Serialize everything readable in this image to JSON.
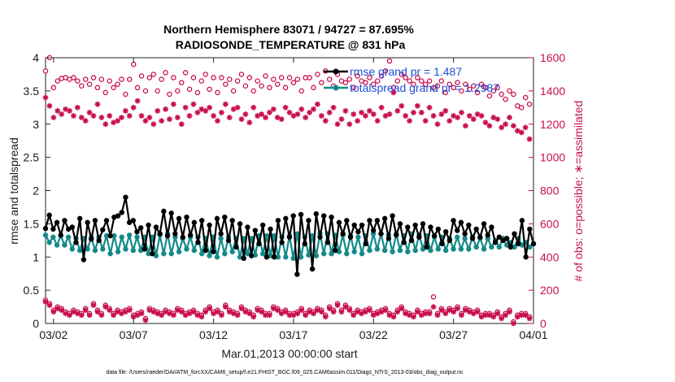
{
  "chart_data": {
    "type": "line",
    "title_line1": "Northern Hemisphere 83071 / 94727 = 87.695%",
    "title_line2": "RADIOSONDE_TEMPERATURE @ 831 hPa",
    "xlabel": "Mar.01,2013 00:00:00 start",
    "ylabel_left": "rmse and totalspread",
    "ylabel_right": "# of obs: o=possible; ∗=assimilated",
    "x_range_days": [
      0.5,
      31.0
    ],
    "y_left_range": [
      0,
      4
    ],
    "y_right_range": [
      0,
      1600
    ],
    "x_ticks": [
      {
        "day": 1,
        "label": "03/02"
      },
      {
        "day": 6,
        "label": "03/07"
      },
      {
        "day": 11,
        "label": "03/12"
      },
      {
        "day": 16,
        "label": "03/17"
      },
      {
        "day": 21,
        "label": "03/22"
      },
      {
        "day": 26,
        "label": "03/27"
      },
      {
        "day": 31,
        "label": "04/01"
      }
    ],
    "y_left_ticks": [
      "0",
      "0.5",
      "1",
      "1.5",
      "2",
      "2.5",
      "3",
      "3.5",
      "4"
    ],
    "y_right_ticks": [
      "0",
      "200",
      "400",
      "600",
      "800",
      "1000",
      "1200",
      "1400",
      "1600"
    ],
    "legend": [
      {
        "label": "rmse grand pr = 1.487",
        "color": "#000000"
      },
      {
        "label": "totalspread grand pr = 1.2987",
        "color": "#138a8a"
      }
    ],
    "colors": {
      "rmse": "#000000",
      "spread": "#138a8a",
      "obs": "#c8104f",
      "legend_text": "#1a4fd8"
    },
    "series": [
      {
        "name": "rmse",
        "values": [
          1.43,
          1.63,
          1.42,
          1.52,
          1.33,
          1.55,
          1.42,
          1.45,
          1.22,
          1.58,
          0.96,
          1.52,
          1.27,
          1.55,
          1.25,
          1.41,
          1.55,
          1.32,
          1.6,
          1.62,
          1.67,
          1.9,
          1.52,
          1.55,
          1.38,
          1.44,
          1.12,
          1.48,
          1.05,
          1.45,
          1.35,
          1.69,
          1.32,
          1.66,
          1.35,
          1.58,
          1.3,
          1.6,
          1.33,
          1.52,
          1.22,
          1.55,
          1.1,
          1.48,
          1.08,
          1.58,
          1.35,
          1.6,
          1.25,
          1.55,
          1.15,
          1.5,
          0.98,
          1.45,
          1.02,
          1.4,
          1.2,
          1.48,
          1.0,
          1.42,
          1.0,
          1.55,
          1.22,
          1.58,
          1.3,
          1.62,
          0.74,
          1.64,
          1.2,
          1.55,
          0.82,
          1.65,
          1.3,
          1.62,
          1.22,
          1.6,
          1.1,
          1.52,
          1.35,
          1.55,
          1.3,
          1.48,
          1.38,
          1.48,
          1.2,
          1.55,
          1.4,
          1.55,
          1.35,
          1.58,
          1.28,
          1.62,
          1.33,
          1.5,
          1.22,
          1.45,
          1.25,
          1.48,
          1.3,
          1.5,
          1.15,
          1.45,
          1.32,
          1.42,
          1.2,
          1.38,
          1.25,
          1.55,
          1.4,
          1.52,
          1.35,
          1.48,
          1.28,
          1.42,
          1.3,
          1.5,
          1.33,
          1.45,
          1.22,
          1.3,
          1.25,
          1.28,
          1.15,
          1.35,
          1.2,
          1.55,
          1.0,
          1.42,
          1.2
        ]
      },
      {
        "name": "totalspread",
        "values": [
          1.33,
          1.22,
          1.3,
          1.18,
          1.32,
          1.18,
          1.3,
          1.12,
          1.28,
          1.1,
          1.28,
          1.12,
          1.3,
          1.1,
          1.3,
          1.12,
          1.32,
          1.05,
          1.32,
          1.08,
          1.3,
          1.12,
          1.33,
          1.1,
          1.3,
          1.1,
          1.3,
          1.05,
          1.3,
          1.02,
          1.33,
          1.05,
          1.35,
          1.05,
          1.3,
          1.08,
          1.28,
          1.12,
          1.3,
          1.1,
          1.3,
          1.05,
          1.28,
          1.02,
          1.3,
          1.0,
          1.28,
          1.05,
          1.3,
          1.08,
          1.28,
          1.0,
          1.28,
          1.05,
          1.28,
          1.03,
          1.32,
          1.05,
          1.32,
          1.02,
          1.32,
          1.0,
          1.3,
          1.0,
          1.32,
          0.98,
          1.35,
          1.0,
          1.3,
          1.03,
          1.32,
          1.02,
          1.35,
          1.05,
          1.35,
          1.05,
          1.33,
          1.08,
          1.33,
          1.05,
          1.32,
          1.08,
          1.3,
          1.05,
          1.32,
          1.1,
          1.35,
          1.12,
          1.35,
          1.1,
          1.33,
          1.08,
          1.35,
          1.1,
          1.32,
          1.08,
          1.35,
          1.1,
          1.33,
          1.12,
          1.32,
          1.1,
          1.3,
          1.12,
          1.3,
          1.1,
          1.28,
          1.12,
          1.3,
          1.12,
          1.28,
          1.12,
          1.3,
          1.15,
          1.28,
          1.12,
          1.28,
          1.15,
          1.25,
          1.15,
          1.28,
          1.18,
          1.22,
          1.15,
          1.28,
          1.18,
          1.22,
          1.15,
          1.2
        ]
      },
      {
        "name": "obs_possible_high",
        "x_days": [
          0.5,
          0.75,
          1.0,
          1.25,
          1.5,
          1.75,
          2.0,
          2.25,
          2.5,
          2.75,
          3.0,
          3.25,
          3.5,
          3.75,
          4.0,
          4.25,
          4.5,
          4.75,
          5.0,
          5.25,
          5.5,
          5.75,
          6.0,
          6.25,
          6.5,
          6.75,
          7.0,
          7.25,
          7.5,
          7.75,
          8.0,
          8.25,
          8.5,
          8.75,
          9.0,
          9.25,
          9.5,
          9.75,
          10.0,
          10.25,
          10.5,
          10.75,
          11.0,
          11.25,
          11.5,
          11.75,
          12.0,
          12.25,
          12.5,
          12.75,
          13.0,
          13.25,
          13.5,
          13.75,
          14.0,
          14.25,
          14.5,
          14.75,
          15.0,
          15.25,
          15.5,
          15.75,
          16.0,
          16.25,
          16.5,
          16.75,
          17.0,
          17.25,
          17.5,
          17.75,
          18.0,
          18.25,
          18.5,
          18.75,
          19.0,
          19.25,
          19.5,
          19.75,
          20.0,
          20.25,
          20.5,
          20.75,
          21.0,
          21.25,
          21.5,
          21.75,
          22.0,
          22.25,
          22.5,
          22.75,
          23.0,
          23.25,
          23.5,
          23.75,
          24.0,
          24.25,
          24.5,
          24.75,
          25.0,
          25.25,
          25.5,
          25.75,
          26.0,
          26.25,
          26.5,
          26.75,
          27.0,
          27.25,
          27.5,
          27.75,
          28.0,
          28.25,
          28.5,
          28.75,
          29.0,
          29.25,
          29.5,
          29.75,
          30.0,
          30.25,
          30.5,
          30.75
        ],
        "values": [
          1520,
          1600,
          1420,
          1460,
          1475,
          1480,
          1470,
          1480,
          1460,
          1430,
          1470,
          1440,
          1480,
          1420,
          1470,
          1390,
          1460,
          1420,
          1440,
          1470,
          1380,
          1470,
          1560,
          1420,
          1490,
          1400,
          1480,
          1500,
          1400,
          1470,
          1510,
          1380,
          1480,
          1400,
          1450,
          1510,
          1410,
          1480,
          1390,
          1460,
          1500,
          1410,
          1480,
          1390,
          1480,
          1440,
          1470,
          1400,
          1460,
          1500,
          1430,
          1480,
          1400,
          1460,
          1430,
          1490,
          1420,
          1470,
          1440,
          1480,
          1420,
          1480,
          1450,
          1470,
          1400,
          1480,
          1480,
          1420,
          1500,
          1450,
          1520,
          1470,
          1430,
          1500,
          1460,
          1450,
          1470,
          1420,
          1490,
          1460,
          1450,
          1480,
          1440,
          1460,
          1490,
          1520,
          1580,
          1420,
          1460,
          1500,
          1480,
          1460,
          1440,
          1480,
          1460,
          1440,
          1460,
          1420,
          1430,
          1460,
          1390,
          1440,
          1420,
          1450,
          1400,
          1440,
          1410,
          1430,
          1390,
          1440,
          1420,
          1370,
          1400,
          1420,
          1380,
          1350,
          1400,
          1380,
          1310,
          1300,
          1360,
          1320
        ]
      },
      {
        "name": "obs_assimilated_high",
        "values": [
          1360,
          1310,
          1240,
          1280,
          1260,
          1290,
          1280,
          1250,
          1300,
          1240,
          1220,
          1270,
          1250,
          1320,
          1240,
          1200,
          1250,
          1210,
          1220,
          1240,
          1280,
          1250,
          1300,
          1340,
          1250,
          1220,
          1240,
          1200,
          1280,
          1220,
          1290,
          1230,
          1320,
          1240,
          1200,
          1300,
          1250,
          1320,
          1270,
          1290,
          1280,
          1300,
          1250,
          1220,
          1270,
          1320,
          1240,
          1290,
          1300,
          1230,
          1260,
          1210,
          1300,
          1250,
          1260,
          1240,
          1270,
          1290,
          1240,
          1230,
          1300,
          1270,
          1250,
          1260,
          1290,
          1240,
          1270,
          1290,
          1320,
          1250,
          1220,
          1270,
          1300,
          1200,
          1230,
          1280,
          1200,
          1260,
          1220,
          1270,
          1250,
          1280,
          1260,
          1220,
          1300,
          1250,
          1260,
          1390,
          1280,
          1310,
          1250,
          1220,
          1270,
          1310,
          1270,
          1220,
          1300,
          1250,
          1200,
          1260,
          1280,
          1220,
          1250,
          1240,
          1270,
          1190,
          1250,
          1230,
          1260,
          1250,
          1210,
          1190,
          1240,
          1230,
          1180,
          1200,
          1240,
          1190,
          1160,
          1150,
          1180,
          1110
        ]
      },
      {
        "name": "obs_possible_low",
        "values": [
          140,
          120,
          80,
          100,
          90,
          70,
          60,
          80,
          70,
          60,
          90,
          60,
          120,
          80,
          60,
          110,
          90,
          60,
          80,
          70,
          80,
          90,
          50,
          60,
          70,
          30,
          90,
          80,
          70,
          60,
          80,
          70,
          60,
          90,
          80,
          60,
          70,
          80,
          60,
          50,
          80,
          100,
          70,
          80,
          60,
          110,
          80,
          70,
          60,
          100,
          80,
          70,
          50,
          90,
          80,
          60,
          60,
          100,
          90,
          70,
          80,
          60,
          60,
          70,
          90,
          60,
          80,
          70,
          90,
          80,
          50,
          100,
          80,
          120,
          80,
          110,
          90,
          60,
          80,
          70,
          80,
          90,
          60,
          70,
          80,
          90,
          60,
          50,
          80,
          100,
          70,
          60,
          50,
          80,
          60,
          70,
          70,
          160,
          60,
          90,
          70,
          90,
          80,
          100,
          60,
          90,
          80,
          70,
          80,
          50,
          60,
          60,
          50,
          70,
          40,
          60,
          80,
          10,
          50,
          60,
          60,
          40,
          50,
          60
        ]
      },
      {
        "name": "obs_assimilated_low",
        "values": [
          130,
          110,
          70,
          90,
          80,
          60,
          50,
          70,
          60,
          50,
          80,
          50,
          110,
          70,
          50,
          100,
          80,
          50,
          70,
          60,
          70,
          80,
          40,
          50,
          60,
          20,
          80,
          70,
          60,
          50,
          70,
          60,
          50,
          80,
          70,
          50,
          60,
          70,
          50,
          40,
          70,
          90,
          60,
          70,
          50,
          100,
          70,
          60,
          50,
          90,
          70,
          60,
          40,
          80,
          70,
          50,
          50,
          90,
          80,
          60,
          70,
          50,
          50,
          60,
          80,
          50,
          70,
          60,
          80,
          70,
          40,
          90,
          70,
          110,
          70,
          100,
          80,
          50,
          70,
          60,
          70,
          80,
          50,
          60,
          70,
          80,
          50,
          40,
          70,
          90,
          60,
          50,
          40,
          70,
          50,
          60,
          60,
          100,
          50,
          80,
          60,
          80,
          70,
          90,
          50,
          80,
          70,
          60,
          70,
          40,
          50,
          50,
          40,
          60,
          30,
          50,
          70,
          0,
          40,
          50,
          50,
          30,
          40,
          50
        ]
      }
    ]
  },
  "footnote": "data file: /Users/raeder/DAI/ATM_forcXX/CAM6_setup/f.e21.FHIST_BGC.f09_025.CAM6assim.011/Diags_NTrS_2013-03/obs_diag_output.nc"
}
